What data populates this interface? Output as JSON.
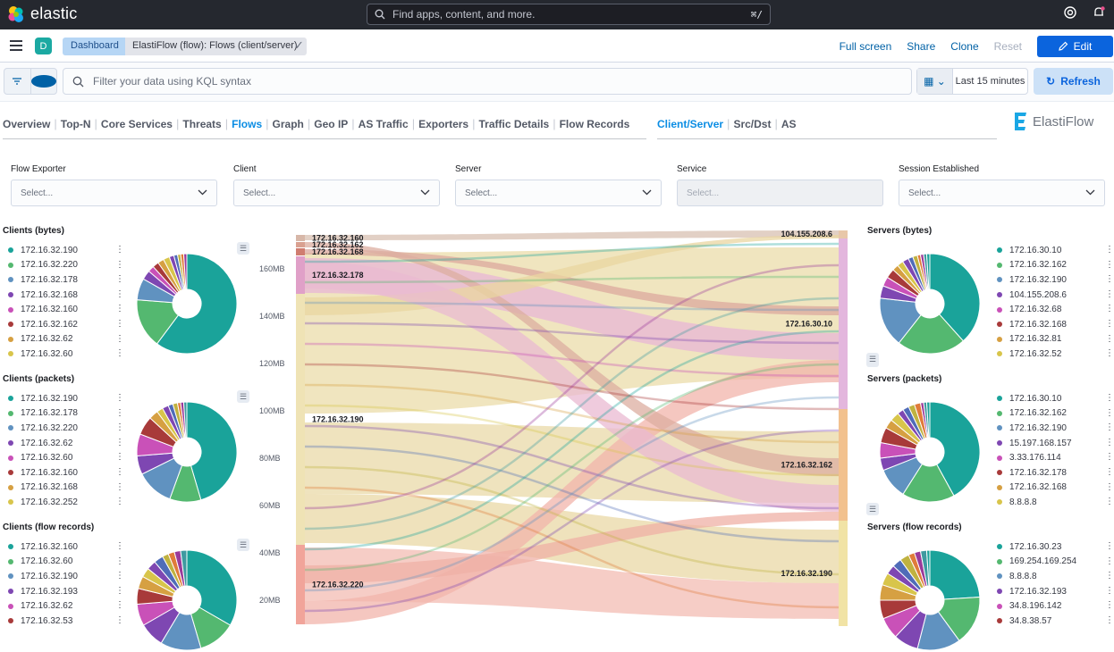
{
  "header": {
    "brand": "elastic",
    "search_placeholder": "Find apps, content, and more.",
    "search_shortcut": "⌘/"
  },
  "nav": {
    "space_avatar": "D",
    "breadcrumb_root": "Dashboard",
    "breadcrumb_current": "ElastiFlow (flow): Flows (client/server)",
    "full_screen": "Full screen",
    "share": "Share",
    "clone": "Clone",
    "reset": "Reset",
    "edit": "Edit"
  },
  "query": {
    "placeholder": "Filter your data using KQL syntax",
    "time_range": "Last 15 minutes",
    "refresh": "Refresh"
  },
  "tabs_main": [
    "Overview",
    "Top-N",
    "Core Services",
    "Threats",
    "Flows",
    "Graph",
    "Geo IP",
    "AS Traffic",
    "Exporters",
    "Traffic Details",
    "Flow Records"
  ],
  "tabs_main_active": "Flows",
  "tabs_sub": [
    "Client/Server",
    "Src/Dst",
    "AS"
  ],
  "tabs_sub_active": "Client/Server",
  "brand_logo": "ElastiFlow",
  "controls": [
    {
      "label": "Flow Exporter",
      "placeholder": "Select...",
      "disabled": false
    },
    {
      "label": "Client",
      "placeholder": "Select...",
      "disabled": false
    },
    {
      "label": "Server",
      "placeholder": "Select...",
      "disabled": false
    },
    {
      "label": "Service",
      "placeholder": "Select...",
      "disabled": true
    },
    {
      "label": "Session Established",
      "placeholder": "Select...",
      "disabled": false
    }
  ],
  "colors": {
    "teal": "#1aa39a",
    "green": "#54b870",
    "blue": "#6092c0",
    "purple": "#7e47b2",
    "magenta": "#c951b8",
    "red": "#a83a3a",
    "orange": "#d6a042",
    "gold": "#d8c54b"
  },
  "panels_left": [
    {
      "title": "Clients (bytes)",
      "items": [
        "172.16.32.190",
        "172.16.32.220",
        "172.16.32.178",
        "172.16.32.168",
        "172.16.32.160",
        "172.16.32.162",
        "172.16.32.62",
        "172.16.32.60"
      ]
    },
    {
      "title": "Clients (packets)",
      "items": [
        "172.16.32.190",
        "172.16.32.178",
        "172.16.32.220",
        "172.16.32.62",
        "172.16.32.60",
        "172.16.32.160",
        "172.16.32.168",
        "172.16.32.252"
      ]
    },
    {
      "title": "Clients (flow records)",
      "items": [
        "172.16.32.160",
        "172.16.32.60",
        "172.16.32.190",
        "172.16.32.193",
        "172.16.32.62",
        "172.16.32.53"
      ]
    }
  ],
  "panels_right": [
    {
      "title": "Servers (bytes)",
      "items": [
        "172.16.30.10",
        "172.16.32.162",
        "172.16.32.190",
        "104.155.208.6",
        "172.16.32.68",
        "172.16.32.168",
        "172.16.32.81",
        "172.16.32.52"
      ]
    },
    {
      "title": "Servers (packets)",
      "items": [
        "172.16.30.10",
        "172.16.32.162",
        "172.16.32.190",
        "15.197.168.157",
        "3.33.176.114",
        "172.16.32.178",
        "172.16.32.168",
        "8.8.8.8"
      ]
    },
    {
      "title": "Servers (flow records)",
      "items": [
        "172.16.30.23",
        "169.254.169.254",
        "8.8.8.8",
        "172.16.32.193",
        "34.8.196.142",
        "34.8.38.57"
      ]
    }
  ],
  "sankey": {
    "y_ticks": [
      "160MB",
      "140MB",
      "120MB",
      "100MB",
      "80MB",
      "60MB",
      "40MB",
      "20MB"
    ],
    "sources": [
      "172.16.32.160",
      "172.16.32.162",
      "172.16.32.168",
      "172.16.32.178",
      "172.16.32.190",
      "172.16.32.220"
    ],
    "targets": [
      "104.155.208.6",
      "172.16.30.10",
      "172.16.32.162",
      "172.16.32.190"
    ]
  }
}
